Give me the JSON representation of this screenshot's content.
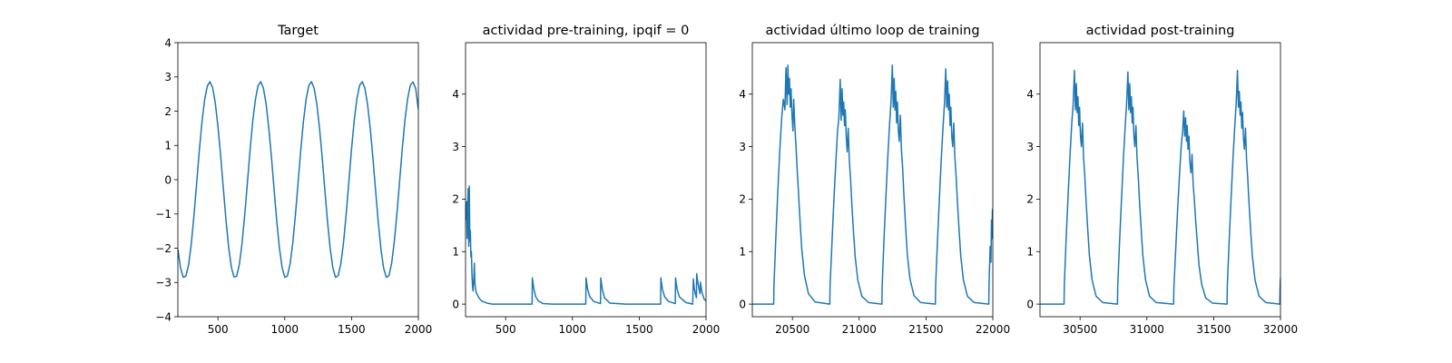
{
  "chart_data": [
    {
      "type": "line",
      "title": "Target",
      "xlabel": "",
      "ylabel": "",
      "xlim": [
        200,
        2000
      ],
      "ylim": [
        -4,
        4
      ],
      "xticks": [
        500,
        1000,
        1500,
        2000
      ],
      "yticks": [
        -4,
        -3,
        -2,
        -1,
        0,
        1,
        2,
        3,
        4
      ],
      "xtick_labels": [
        "500",
        "1000",
        "1500",
        "2000"
      ],
      "ytick_labels": [
        "−4",
        "−3",
        "−2",
        "−1",
        "0",
        "1",
        "2",
        "3",
        "4"
      ],
      "grid": false,
      "color": "#1f77b4",
      "series": [
        {
          "x": [
            200,
            220,
            240,
            260,
            280,
            300,
            320,
            340,
            360,
            380,
            400,
            420,
            440,
            460,
            480,
            500,
            520,
            540,
            560,
            580,
            600,
            620,
            640,
            660,
            680,
            700,
            720,
            740,
            760,
            780,
            800,
            820,
            840,
            860,
            880,
            900,
            920,
            940,
            960,
            980,
            1000,
            1020,
            1040,
            1060,
            1080,
            1100,
            1120,
            1140,
            1160,
            1180,
            1200,
            1220,
            1240,
            1260,
            1280,
            1300,
            1320,
            1340,
            1360,
            1380,
            1400,
            1420,
            1440,
            1460,
            1480,
            1500,
            1520,
            1540,
            1560,
            1580,
            1600,
            1620,
            1640,
            1660,
            1680,
            1700,
            1720,
            1740,
            1760,
            1780,
            1800,
            1820,
            1840,
            1860,
            1880,
            1900,
            1920,
            1940,
            1960,
            1980,
            2000
          ],
          "y": [
            -2.03,
            -2.58,
            -2.85,
            -2.82,
            -2.49,
            -1.89,
            -1.07,
            -0.13,
            0.82,
            1.67,
            2.32,
            2.73,
            2.86,
            2.69,
            2.24,
            1.55,
            0.71,
            -0.24,
            -1.17,
            -1.97,
            -2.55,
            -2.84,
            -2.82,
            -2.48,
            -1.87,
            -1.04,
            -0.11,
            0.85,
            1.69,
            2.33,
            2.74,
            2.86,
            2.68,
            2.22,
            1.53,
            0.68,
            -0.27,
            -1.2,
            -1.99,
            -2.56,
            -2.85,
            -2.81,
            -2.46,
            -1.85,
            -1.02,
            -0.08,
            0.87,
            1.71,
            2.35,
            2.75,
            2.86,
            2.67,
            2.21,
            1.51,
            0.66,
            -0.29,
            -1.22,
            -2.01,
            -2.57,
            -2.85,
            -2.8,
            -2.45,
            -1.83,
            -1.0,
            -0.05,
            0.9,
            1.73,
            2.36,
            2.75,
            2.86,
            2.67,
            2.19,
            1.49,
            0.63,
            -0.32,
            -1.24,
            -2.03,
            -2.58,
            -2.85,
            -2.8,
            -2.44,
            -1.81,
            -0.97,
            -0.03,
            0.92,
            1.75,
            2.37,
            2.76,
            2.85,
            2.66,
            2.05
          ]
        }
      ]
    },
    {
      "type": "line",
      "title": "actividad pre-training, ipqif = 0",
      "xlabel": "",
      "ylabel": "",
      "xlim": [
        200,
        2000
      ],
      "ylim": [
        -0.24,
        4.98
      ],
      "xticks": [
        500,
        1000,
        1500,
        2000
      ],
      "yticks": [
        0,
        1,
        2,
        3,
        4
      ],
      "xtick_labels": [
        "500",
        "1000",
        "1500",
        "2000"
      ],
      "ytick_labels": [
        "0",
        "1",
        "2",
        "3",
        "4"
      ],
      "grid": false,
      "color": "#1f77b4",
      "series": [
        {
          "x": [
            200,
            208,
            212,
            216,
            220,
            224,
            228,
            232,
            236,
            240,
            244,
            248,
            252,
            256,
            262,
            266,
            270,
            274,
            280,
            300,
            320,
            360,
            400,
            500,
            600,
            698,
            700,
            704,
            712,
            725,
            745,
            780,
            850,
            1000,
            1100,
            1102,
            1106,
            1114,
            1130,
            1160,
            1210,
            1212,
            1216,
            1224,
            1240,
            1280,
            1400,
            1600,
            1660,
            1662,
            1666,
            1674,
            1690,
            1720,
            1770,
            1772,
            1776,
            1784,
            1800,
            1850,
            1900,
            1905,
            1907,
            1912,
            1920,
            1928,
            1930,
            1935,
            1945,
            1955,
            1958,
            1962,
            1970,
            1985,
            2000
          ],
          "y": [
            1.6,
            1.95,
            1.25,
            1.9,
            2.2,
            1.1,
            2.25,
            1.2,
            1.4,
            0.9,
            1.0,
            0.55,
            0.35,
            0.25,
            0.5,
            0.78,
            0.4,
            0.3,
            0.22,
            0.12,
            0.06,
            0.02,
            0.0,
            0.0,
            0.0,
            0.0,
            0.5,
            0.42,
            0.28,
            0.14,
            0.06,
            0.01,
            0.0,
            0.0,
            0.0,
            0.5,
            0.42,
            0.28,
            0.14,
            0.05,
            0.01,
            0.5,
            0.42,
            0.28,
            0.12,
            0.02,
            0.0,
            0.0,
            0.0,
            0.5,
            0.42,
            0.28,
            0.14,
            0.05,
            0.01,
            0.5,
            0.42,
            0.28,
            0.14,
            0.03,
            0.0,
            0.48,
            0.42,
            0.3,
            0.2,
            0.12,
            0.58,
            0.48,
            0.32,
            0.2,
            0.42,
            0.35,
            0.22,
            0.1,
            0.06
          ]
        }
      ]
    },
    {
      "type": "line",
      "title": "actividad último loop de training",
      "xlabel": "",
      "ylabel": "",
      "xlim": [
        20200,
        22000
      ],
      "ylim": [
        -0.24,
        4.98
      ],
      "xticks": [
        20500,
        21000,
        21500,
        22000
      ],
      "yticks": [
        0,
        1,
        2,
        3,
        4
      ],
      "xtick_labels": [
        "20500",
        "21000",
        "21500",
        "22000"
      ],
      "ytick_labels": [
        "0",
        "1",
        "2",
        "3",
        "4"
      ],
      "grid": false,
      "color": "#1f77b4",
      "series": [
        {
          "x": [
            20200,
            20360,
            20362,
            20375,
            20390,
            20405,
            20420,
            20432,
            20444,
            20452,
            20460,
            20466,
            20472,
            20478,
            20484,
            20490,
            20497,
            20504,
            20510,
            20518,
            20526,
            20535,
            20545,
            20558,
            20570,
            20590,
            20620,
            20670,
            20780,
            20782,
            20795,
            20810,
            20825,
            20838,
            20848,
            20858,
            20865,
            20872,
            20878,
            20884,
            20890,
            20896,
            20903,
            20910,
            20918,
            20926,
            20935,
            20945,
            20958,
            20970,
            20990,
            21020,
            21070,
            21170,
            21172,
            21185,
            21200,
            21215,
            21228,
            21238,
            21248,
            21255,
            21262,
            21268,
            21274,
            21280,
            21286,
            21293,
            21300,
            21308,
            21316,
            21325,
            21335,
            21348,
            21360,
            21380,
            21410,
            21460,
            21570,
            21572,
            21585,
            21600,
            21615,
            21628,
            21638,
            21648,
            21655,
            21662,
            21668,
            21674,
            21680,
            21686,
            21693,
            21700,
            21708,
            21716,
            21725,
            21735,
            21748,
            21760,
            21780,
            21810,
            21860,
            21970,
            21972,
            21980,
            21986,
            21990,
            21994,
            21997,
            22000
          ],
          "y": [
            0.0,
            0.0,
            0.35,
            1.2,
            2.1,
            2.9,
            3.55,
            3.9,
            3.7,
            4.5,
            3.8,
            4.55,
            4.0,
            4.3,
            3.75,
            4.1,
            3.6,
            3.3,
            3.9,
            3.4,
            3.05,
            2.6,
            2.15,
            1.55,
            1.05,
            0.55,
            0.2,
            0.04,
            0.0,
            0.35,
            1.1,
            1.95,
            2.7,
            3.3,
            3.55,
            4.28,
            3.5,
            4.1,
            3.6,
            3.85,
            3.4,
            3.7,
            3.2,
            2.9,
            3.35,
            2.75,
            2.4,
            1.9,
            1.35,
            0.9,
            0.45,
            0.15,
            0.03,
            0.0,
            0.35,
            1.2,
            2.05,
            2.85,
            3.45,
            3.85,
            4.55,
            3.75,
            4.3,
            3.7,
            4.05,
            3.45,
            3.85,
            3.3,
            3.1,
            3.6,
            2.95,
            2.6,
            2.05,
            1.45,
            0.95,
            0.48,
            0.16,
            0.03,
            0.0,
            0.35,
            1.15,
            2.0,
            2.8,
            3.4,
            3.8,
            4.48,
            3.75,
            4.25,
            3.7,
            4.0,
            3.4,
            3.75,
            3.2,
            3.0,
            3.45,
            2.8,
            2.45,
            1.95,
            1.4,
            0.92,
            0.46,
            0.15,
            0.03,
            0.0,
            0.4,
            1.1,
            0.8,
            1.6,
            1.25,
            1.8,
            1.25
          ]
        }
      ]
    },
    {
      "type": "line",
      "title": "actividad post-training",
      "xlabel": "",
      "ylabel": "",
      "xlim": [
        30200,
        32000
      ],
      "ylim": [
        -0.24,
        4.98
      ],
      "xticks": [
        30500,
        31000,
        31500,
        32000
      ],
      "yticks": [
        0,
        1,
        2,
        3,
        4
      ],
      "xtick_labels": [
        "30500",
        "31000",
        "31500",
        "32000"
      ],
      "ytick_labels": [
        "0",
        "1",
        "2",
        "3",
        "4"
      ],
      "grid": false,
      "color": "#1f77b4",
      "series": [
        {
          "x": [
            30200,
            30380,
            30382,
            30395,
            30410,
            30425,
            30438,
            30448,
            30458,
            30465,
            30472,
            30478,
            30484,
            30490,
            30496,
            30503,
            30510,
            30518,
            30526,
            30535,
            30545,
            30558,
            30570,
            30590,
            30620,
            30670,
            30780,
            30782,
            30795,
            30810,
            30825,
            30838,
            30848,
            30858,
            30865,
            30872,
            30878,
            30884,
            30890,
            30896,
            30903,
            30910,
            30918,
            30926,
            30935,
            30945,
            30958,
            30970,
            30990,
            31020,
            31070,
            31200,
            31202,
            31215,
            31230,
            31245,
            31258,
            31268,
            31276,
            31283,
            31290,
            31296,
            31302,
            31308,
            31315,
            31322,
            31330,
            31338,
            31346,
            31355,
            31365,
            31378,
            31390,
            31410,
            31440,
            31490,
            31600,
            31602,
            31615,
            31630,
            31645,
            31658,
            31668,
            31678,
            31685,
            31692,
            31698,
            31704,
            31710,
            31716,
            31723,
            31730,
            31738,
            31746,
            31755,
            31765,
            31778,
            31790,
            31810,
            31840,
            31890,
            31995,
            31997,
            32000
          ],
          "y": [
            0.0,
            0.0,
            0.35,
            1.2,
            2.05,
            2.85,
            3.45,
            3.8,
            4.45,
            3.7,
            4.2,
            3.65,
            3.95,
            3.4,
            3.75,
            3.2,
            3.0,
            3.45,
            2.8,
            2.45,
            1.95,
            1.4,
            0.92,
            0.46,
            0.15,
            0.03,
            0.0,
            0.35,
            1.15,
            2.0,
            2.8,
            3.4,
            3.8,
            4.42,
            3.7,
            4.2,
            3.65,
            3.95,
            3.45,
            3.75,
            3.2,
            3.0,
            3.4,
            2.8,
            2.45,
            1.95,
            1.4,
            0.92,
            0.46,
            0.15,
            0.03,
            0.0,
            0.3,
            1.0,
            1.8,
            2.5,
            3.05,
            3.3,
            3.68,
            3.2,
            3.55,
            3.1,
            3.4,
            2.95,
            3.2,
            2.7,
            2.5,
            2.85,
            2.3,
            2.0,
            1.6,
            1.15,
            0.75,
            0.38,
            0.12,
            0.02,
            0.0,
            0.35,
            1.15,
            2.0,
            2.8,
            3.4,
            3.8,
            4.45,
            3.75,
            4.05,
            3.6,
            3.85,
            3.35,
            3.65,
            3.15,
            2.95,
            3.35,
            2.75,
            2.4,
            1.9,
            1.35,
            0.9,
            0.45,
            0.15,
            0.03,
            0.0,
            0.3,
            0.5
          ]
        }
      ]
    }
  ]
}
